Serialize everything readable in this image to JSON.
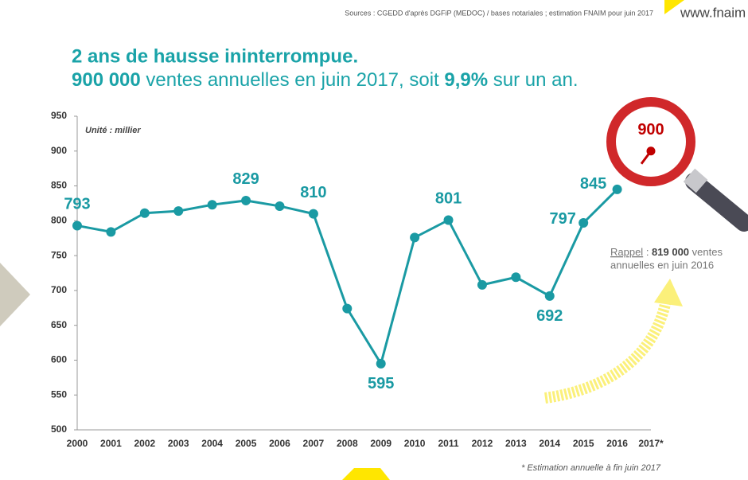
{
  "source": "Sources : CGEDD d'après DGFiP (MEDOC) / bases notariales ; estimation FNAIM pour juin 2017",
  "brand": "www.fnaim",
  "chart_data": {
    "type": "line",
    "title": "2 ans de hausse ininterrompue.",
    "subtitle": [
      {
        "text": "900 000",
        "bold": true
      },
      {
        "text": " ventes annuelles en juin 2017, soit ",
        "bold": false
      },
      {
        "text": "9,9%",
        "bold": true
      },
      {
        "text": " sur un an.",
        "bold": false
      }
    ],
    "unit_label": "Unité : millier",
    "categories": [
      "2000",
      "2001",
      "2002",
      "2003",
      "2004",
      "2005",
      "2006",
      "2007",
      "2008",
      "2009",
      "2010",
      "2011",
      "2012",
      "2013",
      "2014",
      "2015",
      "2016",
      "2017*"
    ],
    "series": [
      {
        "name": "ventes annuelles",
        "color": "#1a9aa3",
        "values": [
          793,
          784,
          811,
          814,
          823,
          829,
          821,
          810,
          674,
          595,
          776,
          801,
          708,
          719,
          692,
          797,
          845,
          900
        ],
        "value_labels": [
          "793",
          null,
          null,
          null,
          null,
          "829",
          null,
          "810",
          null,
          "595",
          null,
          "801",
          null,
          null,
          "692",
          "797",
          "845",
          "900"
        ]
      }
    ],
    "highlight_color": "#c00000",
    "ylim": [
      500,
      950
    ],
    "yticks": [
      500,
      550,
      600,
      650,
      700,
      750,
      800,
      850,
      900,
      950
    ],
    "annotation": [
      {
        "text": "Rappel",
        "style": "underline"
      },
      {
        "text": " : ",
        "style": "normal"
      },
      {
        "text": "819 000",
        "style": "bold"
      },
      {
        "text": " ventes",
        "style": "normal"
      }
    ],
    "annotation_line2": "annuelles en juin 2016",
    "footnote": "* Estimation annuelle à fin juin 2017"
  }
}
